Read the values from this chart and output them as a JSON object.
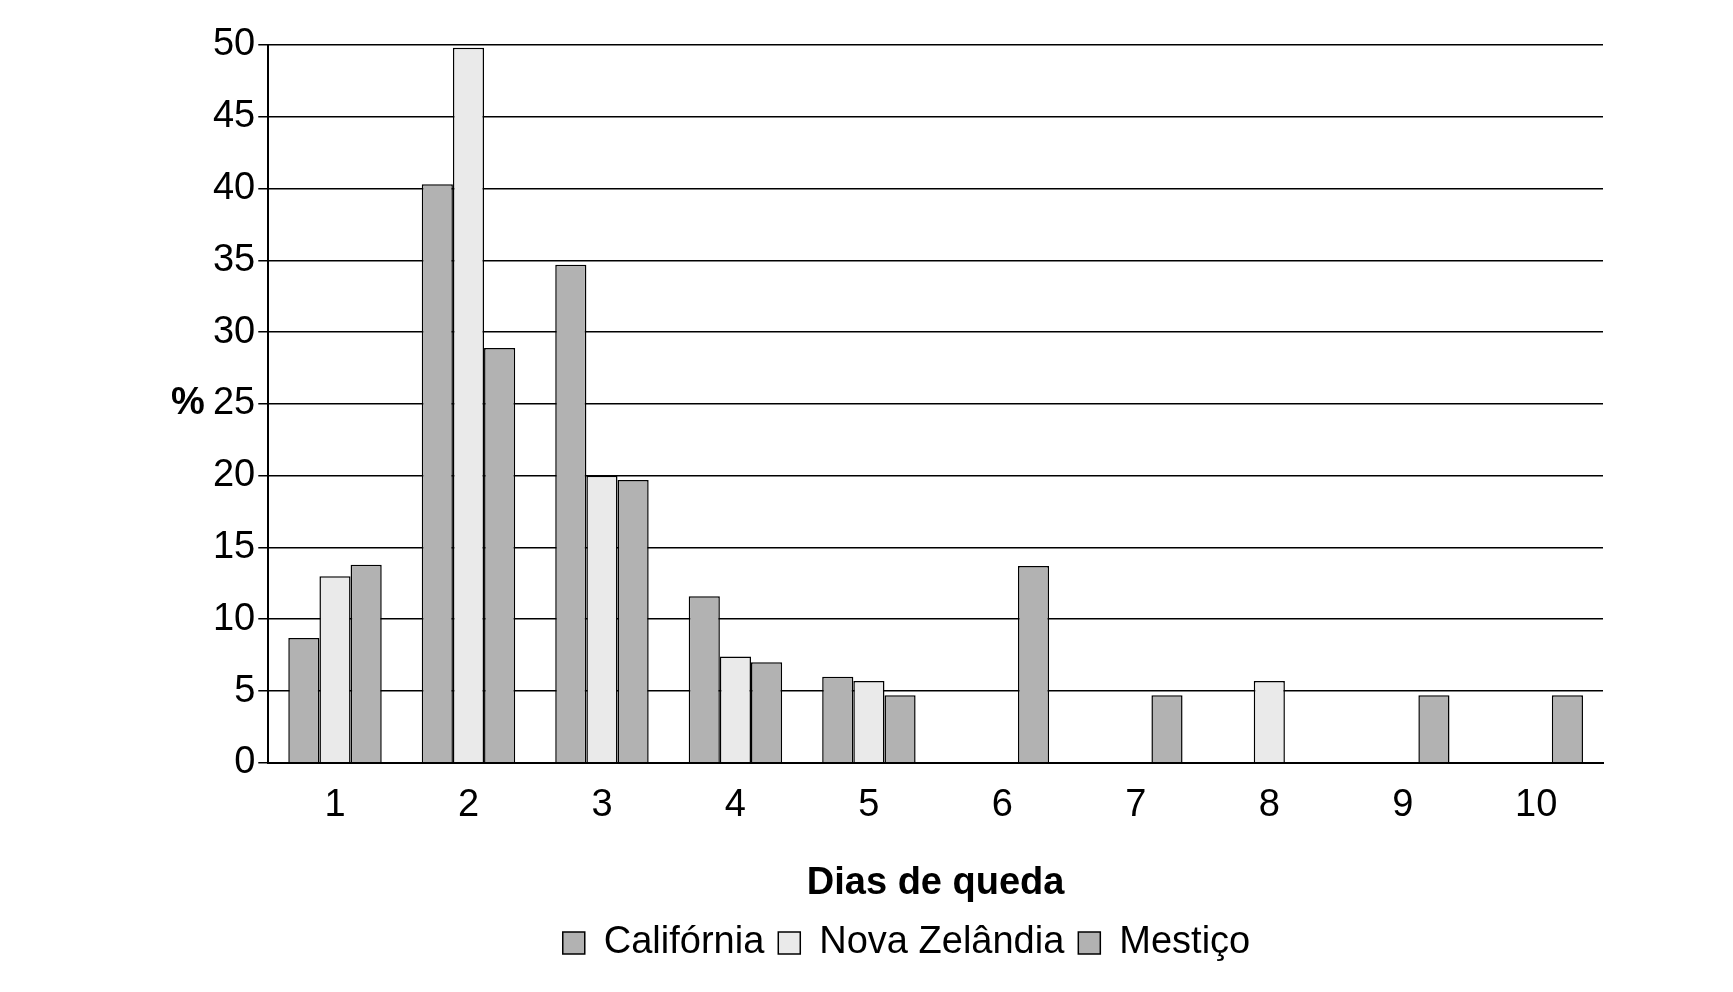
{
  "chart_data": {
    "type": "bar",
    "xlabel": "Dias de queda",
    "ylabel": "%",
    "categories": [
      "1",
      "2",
      "3",
      "4",
      "5",
      "6",
      "7",
      "8",
      "9",
      "10"
    ],
    "series": [
      {
        "name": "Califórnia",
        "color": "#b2b2b2",
        "values": [
          8.7,
          40.3,
          34.7,
          11.6,
          6,
          null,
          null,
          null,
          null,
          null
        ]
      },
      {
        "name": "Nova Zelândia",
        "color": "#eaeaea",
        "values": [
          13,
          49.8,
          20,
          7.4,
          5.7,
          null,
          null,
          5.7,
          null,
          null
        ]
      },
      {
        "name": "Mestiço",
        "color": "#b2b2b2",
        "values": [
          13.8,
          28.9,
          19.7,
          7,
          4.7,
          13.7,
          4.7,
          null,
          4.7,
          4.7
        ]
      }
    ],
    "ylim": [
      0,
      50
    ],
    "yticks": [
      0,
      5,
      10,
      15,
      20,
      25,
      30,
      35,
      40,
      45,
      50
    ],
    "grid": "y",
    "legend": "bottom"
  }
}
